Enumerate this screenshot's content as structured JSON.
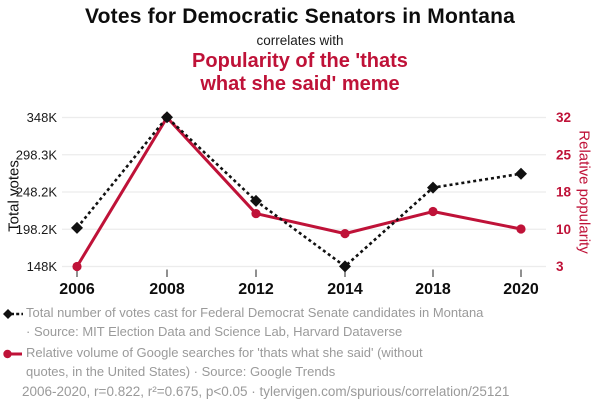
{
  "header": {
    "title": "Votes for Democratic Senators in Montana",
    "subtitle": "correlates with",
    "secondary_title_line1": "Popularity of the 'thats",
    "secondary_title_line2": "what she said' meme",
    "accent_color": "#bf1238"
  },
  "chart_data": {
    "type": "line",
    "categories": [
      "2006",
      "2008",
      "2012",
      "2014",
      "2018",
      "2020"
    ],
    "left_axis": {
      "label": "Total votes",
      "ticks": [
        "148K",
        "198.2K",
        "248.2K",
        "298.3K",
        "348K"
      ],
      "min": 148,
      "max": 348,
      "unit": "K votes"
    },
    "right_axis": {
      "label": "Relative popularity",
      "ticks": [
        "3",
        "10",
        "18",
        "25",
        "32"
      ],
      "min": 3,
      "max": 32
    },
    "series": [
      {
        "name": "Total number of votes cast for Federal Democrat Senate candidates in Montana",
        "axis": "left",
        "style": "dashed-diamond",
        "color": "#111111",
        "values": [
          199.8,
          348.3,
          236.1,
          148.2,
          253.9,
          272.5
        ]
      },
      {
        "name": "Relative volume of Google searches for 'thats what she said'",
        "axis": "right",
        "style": "solid-circle",
        "color": "#bf1238",
        "values": [
          3,
          32,
          13.3,
          9.4,
          13.7,
          10.3
        ]
      }
    ],
    "grid": true,
    "legend_position": "bottom"
  },
  "legend": {
    "series1": {
      "line1": "Total number of votes cast for Federal Democrat Senate candidates in Montana",
      "line2": "· Source: MIT Election Data and Science Lab, Harvard Dataverse"
    },
    "series2": {
      "line1": "Relative volume of Google searches for 'thats what she said' (without",
      "line2": "quotes, in the United States) · Source: Google Trends"
    }
  },
  "footer": {
    "text": "2006-2020, r=0.822, r²=0.675, p<0.05 · tylervigen.com/spurious/correlation/25121"
  }
}
